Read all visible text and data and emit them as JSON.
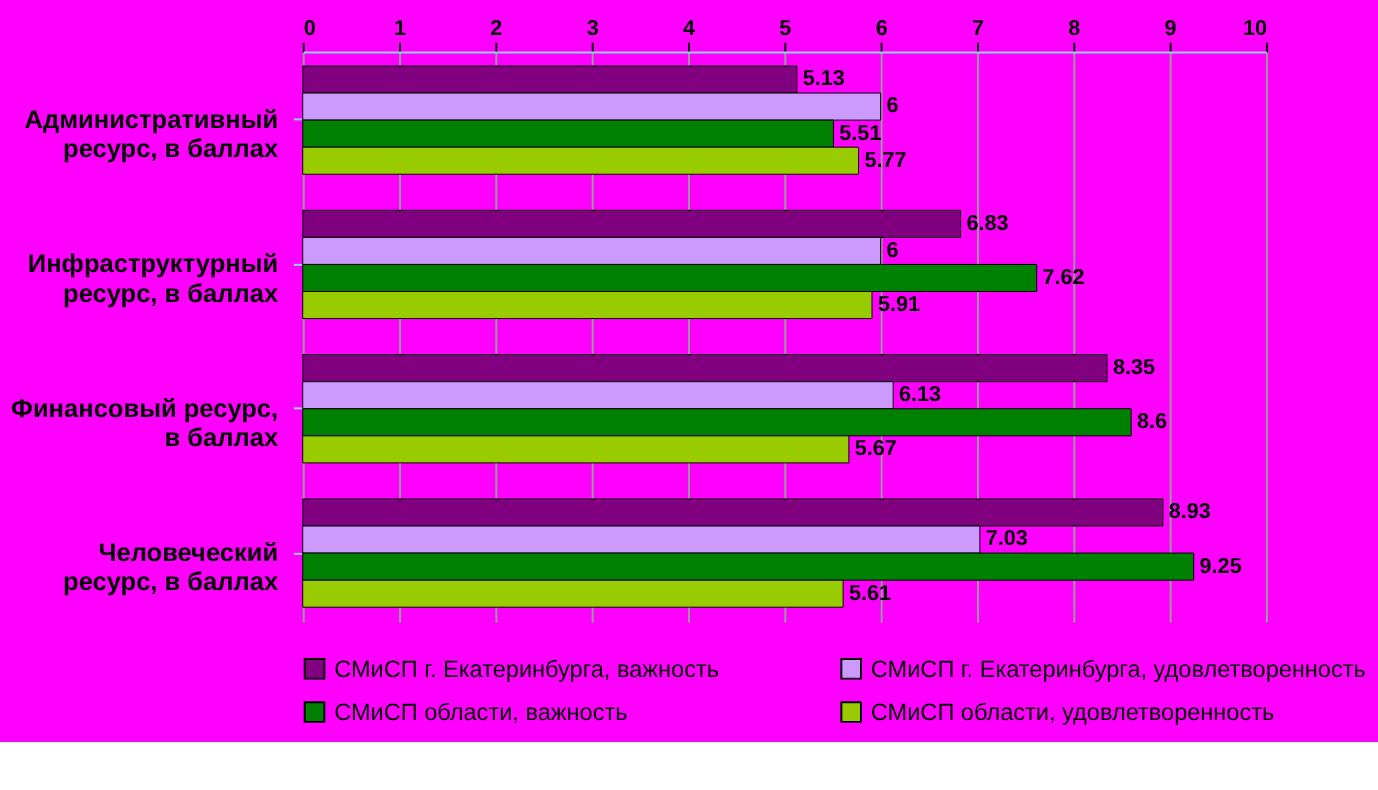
{
  "chart_data": {
    "type": "bar",
    "orientation": "horizontal",
    "categories": [
      "Административный ресурс, в баллах",
      "Инфраструктурный ресурс, в баллах",
      "Финансовый ресурс, в баллах",
      "Человеческий ресурс, в баллах"
    ],
    "series": [
      {
        "name": "СМиСП г. Екатеринбурга, важность",
        "color": "#800080",
        "values": [
          5.13,
          6.83,
          8.35,
          8.93
        ]
      },
      {
        "name": "СМиСП г. Екатеринбурга, удовлетворенность",
        "color": "#cc99ff",
        "values": [
          6,
          6,
          6.13,
          7.03
        ]
      },
      {
        "name": "СМиСП области, важность",
        "color": "#008000",
        "values": [
          5.51,
          7.62,
          8.6,
          9.25
        ]
      },
      {
        "name": "СМиСП области, удовлетворенность",
        "color": "#99cc00",
        "values": [
          5.77,
          5.91,
          5.67,
          5.61
        ]
      }
    ],
    "xlim": [
      0,
      10
    ],
    "xticks": [
      0,
      1,
      2,
      3,
      4,
      5,
      6,
      7,
      8,
      9,
      10
    ],
    "grid": "x",
    "data_labels": true,
    "legend": "bottom"
  }
}
